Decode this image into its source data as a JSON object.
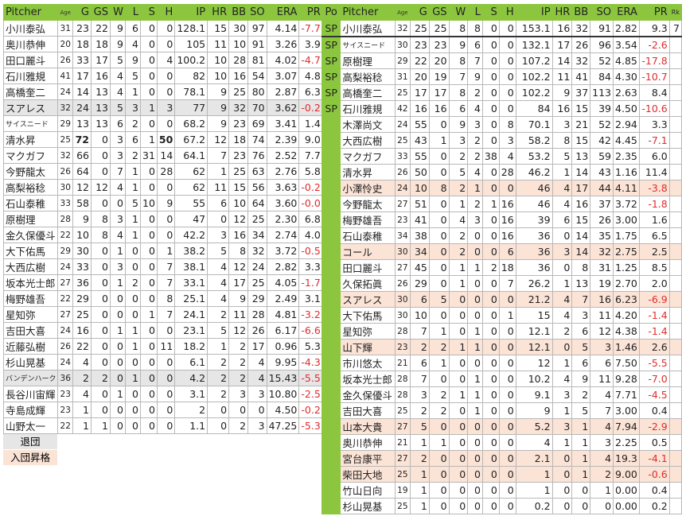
{
  "colors": {
    "header": "#8cc63f",
    "retired": "#e6e6e6",
    "joined": "#fbe3d6",
    "negative": "#e02c2c"
  },
  "left": {
    "headers": [
      "Pitcher",
      "Age",
      "G",
      "GS",
      "W",
      "L",
      "S",
      "H",
      "IP",
      "HR",
      "BB",
      "SO",
      "ERA",
      "PR",
      "Rk"
    ],
    "rows": [
      {
        "r": [
          "小川泰弘",
          "31",
          "23",
          "22",
          "9",
          "6",
          "0",
          "0",
          "128.1",
          "15",
          "30",
          "97",
          "4.14",
          "-7.7",
          ""
        ]
      },
      {
        "r": [
          "奥川恭伸",
          "20",
          "18",
          "18",
          "9",
          "4",
          "0",
          "0",
          "105",
          "11",
          "10",
          "91",
          "3.26",
          "3.9",
          ""
        ]
      },
      {
        "r": [
          "田口麗斗",
          "26",
          "33",
          "17",
          "5",
          "9",
          "0",
          "4",
          "100.2",
          "10",
          "28",
          "81",
          "4.02",
          "-4.7",
          ""
        ]
      },
      {
        "r": [
          "石川雅規",
          "41",
          "17",
          "16",
          "4",
          "5",
          "0",
          "0",
          "82",
          "10",
          "16",
          "54",
          "3.07",
          "4.8",
          ""
        ]
      },
      {
        "r": [
          "高橋奎二",
          "24",
          "14",
          "13",
          "4",
          "1",
          "0",
          "0",
          "78.1",
          "9",
          "25",
          "80",
          "2.87",
          "6.3",
          ""
        ]
      },
      {
        "r": [
          "スアレス",
          "32",
          "24",
          "13",
          "5",
          "3",
          "1",
          "3",
          "77",
          "9",
          "32",
          "70",
          "3.62",
          "-0.2",
          ""
        ],
        "hl": "gray"
      },
      {
        "r": [
          "サイスニード",
          "29",
          "13",
          "13",
          "6",
          "2",
          "0",
          "0",
          "68.2",
          "9",
          "23",
          "69",
          "3.41",
          "1.4",
          ""
        ]
      },
      {
        "r": [
          "清水昇",
          "25",
          "72",
          "0",
          "3",
          "6",
          "1",
          "50",
          "67.2",
          "12",
          "18",
          "74",
          "2.39",
          "9.0",
          ""
        ],
        "bold": [
          2,
          7
        ]
      },
      {
        "r": [
          "マクガフ",
          "32",
          "66",
          "0",
          "3",
          "2",
          "31",
          "14",
          "64.1",
          "7",
          "23",
          "76",
          "2.52",
          "7.7",
          ""
        ]
      },
      {
        "r": [
          "今野龍太",
          "26",
          "64",
          "0",
          "7",
          "1",
          "0",
          "28",
          "62",
          "1",
          "25",
          "63",
          "2.76",
          "5.8",
          ""
        ]
      },
      {
        "r": [
          "高梨裕稔",
          "30",
          "12",
          "12",
          "4",
          "1",
          "0",
          "0",
          "62",
          "11",
          "15",
          "56",
          "3.63",
          "-0.2",
          ""
        ]
      },
      {
        "r": [
          "石山泰稚",
          "33",
          "58",
          "0",
          "0",
          "5",
          "10",
          "9",
          "55",
          "6",
          "10",
          "64",
          "3.60",
          "-0.0",
          ""
        ]
      },
      {
        "r": [
          "原樹理",
          "28",
          "9",
          "8",
          "3",
          "1",
          "0",
          "0",
          "47",
          "0",
          "12",
          "25",
          "2.30",
          "6.8",
          ""
        ]
      },
      {
        "r": [
          "金久保優斗",
          "22",
          "10",
          "8",
          "4",
          "1",
          "0",
          "0",
          "42.2",
          "3",
          "16",
          "34",
          "2.74",
          "4.0",
          ""
        ]
      },
      {
        "r": [
          "大下佑馬",
          "29",
          "30",
          "0",
          "1",
          "0",
          "0",
          "1",
          "38.2",
          "5",
          "8",
          "32",
          "3.72",
          "-0.5",
          ""
        ]
      },
      {
        "r": [
          "大西広樹",
          "24",
          "33",
          "0",
          "3",
          "0",
          "0",
          "7",
          "38.1",
          "4",
          "12",
          "24",
          "2.82",
          "3.3",
          ""
        ]
      },
      {
        "r": [
          "坂本光士郎",
          "27",
          "36",
          "0",
          "1",
          "2",
          "0",
          "7",
          "33.1",
          "4",
          "17",
          "25",
          "4.05",
          "-1.7",
          ""
        ]
      },
      {
        "r": [
          "梅野雄吾",
          "22",
          "29",
          "0",
          "0",
          "0",
          "0",
          "8",
          "25.1",
          "4",
          "9",
          "29",
          "2.49",
          "3.1",
          ""
        ]
      },
      {
        "r": [
          "星知弥",
          "27",
          "25",
          "0",
          "0",
          "0",
          "1",
          "7",
          "24.1",
          "2",
          "11",
          "28",
          "4.81",
          "-3.2",
          ""
        ]
      },
      {
        "r": [
          "吉田大喜",
          "24",
          "16",
          "0",
          "1",
          "1",
          "0",
          "0",
          "23.1",
          "5",
          "12",
          "26",
          "6.17",
          "-6.6",
          ""
        ]
      },
      {
        "r": [
          "近藤弘樹",
          "26",
          "22",
          "0",
          "0",
          "1",
          "0",
          "11",
          "18.2",
          "1",
          "2",
          "17",
          "0.96",
          "5.3",
          ""
        ]
      },
      {
        "r": [
          "杉山晃基",
          "24",
          "4",
          "0",
          "0",
          "0",
          "0",
          "0",
          "6.1",
          "2",
          "2",
          "4",
          "9.95",
          "-4.3",
          ""
        ]
      },
      {
        "r": [
          "バンデンハーク",
          "36",
          "2",
          "2",
          "0",
          "1",
          "0",
          "0",
          "4.2",
          "2",
          "2",
          "4",
          "15.43",
          "-5.5",
          ""
        ],
        "hl": "gray"
      },
      {
        "r": [
          "長谷川宙輝",
          "23",
          "4",
          "0",
          "1",
          "0",
          "0",
          "0",
          "3.1",
          "2",
          "3",
          "3",
          "10.80",
          "-2.5",
          ""
        ]
      },
      {
        "r": [
          "寺島成輝",
          "23",
          "1",
          "0",
          "0",
          "0",
          "0",
          "0",
          "2",
          "0",
          "0",
          "0",
          "4.50",
          "-0.2",
          ""
        ]
      },
      {
        "r": [
          "山野太一",
          "22",
          "1",
          "1",
          "0",
          "0",
          "0",
          "0",
          "1.1",
          "0",
          "2",
          "3",
          "47.25",
          "-5.3",
          ""
        ]
      }
    ]
  },
  "legend": {
    "retired": "退団",
    "joined": "入団昇格"
  },
  "right": {
    "headers": [
      "Po",
      "Pitcher",
      "Age",
      "G",
      "GS",
      "W",
      "L",
      "S",
      "H",
      "IP",
      "HR",
      "BB",
      "SO",
      "ERA",
      "PR",
      "Rk"
    ],
    "rows": [
      {
        "r": [
          "SP",
          "小川泰弘",
          "32",
          "25",
          "25",
          "8",
          "8",
          "0",
          "0",
          "153.1",
          "16",
          "32",
          "91",
          "2.82",
          "9.3",
          "7"
        ]
      },
      {
        "r": [
          "SP",
          "サイスニード",
          "30",
          "23",
          "23",
          "9",
          "6",
          "0",
          "0",
          "132.1",
          "17",
          "26",
          "96",
          "3.54",
          "-2.6",
          ""
        ]
      },
      {
        "r": [
          "SP",
          "原樹理",
          "29",
          "22",
          "20",
          "8",
          "7",
          "0",
          "0",
          "107.2",
          "14",
          "32",
          "52",
          "4.85",
          "-17.8",
          ""
        ]
      },
      {
        "r": [
          "SP",
          "高梨裕稔",
          "31",
          "20",
          "19",
          "7",
          "9",
          "0",
          "0",
          "102.2",
          "11",
          "41",
          "84",
          "4.30",
          "-10.7",
          ""
        ]
      },
      {
        "r": [
          "SP",
          "高橋奎二",
          "25",
          "17",
          "17",
          "8",
          "2",
          "0",
          "0",
          "102.2",
          "9",
          "37",
          "113",
          "2.63",
          "8.4",
          ""
        ]
      },
      {
        "r": [
          "SP",
          "石川雅規",
          "42",
          "16",
          "16",
          "6",
          "4",
          "0",
          "0",
          "84",
          "16",
          "15",
          "39",
          "4.50",
          "-10.6",
          ""
        ]
      },
      {
        "r": [
          "",
          "木澤尚文",
          "24",
          "55",
          "0",
          "9",
          "3",
          "0",
          "8",
          "70.1",
          "3",
          "21",
          "52",
          "2.94",
          "3.3",
          ""
        ]
      },
      {
        "r": [
          "",
          "大西広樹",
          "25",
          "43",
          "1",
          "3",
          "2",
          "0",
          "3",
          "58.2",
          "8",
          "15",
          "42",
          "4.45",
          "-7.1",
          ""
        ]
      },
      {
        "r": [
          "",
          "マクガフ",
          "33",
          "55",
          "0",
          "2",
          "2",
          "38",
          "4",
          "53.2",
          "5",
          "13",
          "59",
          "2.35",
          "6.0",
          ""
        ]
      },
      {
        "r": [
          "",
          "清水昇",
          "26",
          "50",
          "0",
          "5",
          "4",
          "0",
          "28",
          "46.2",
          "1",
          "14",
          "43",
          "1.16",
          "11.4",
          ""
        ]
      },
      {
        "r": [
          "",
          "小澤怜史",
          "24",
          "10",
          "8",
          "2",
          "1",
          "0",
          "0",
          "46",
          "4",
          "17",
          "44",
          "4.11",
          "-3.8",
          ""
        ],
        "hl": "peach"
      },
      {
        "r": [
          "",
          "今野龍太",
          "27",
          "51",
          "0",
          "1",
          "2",
          "1",
          "16",
          "46",
          "4",
          "16",
          "37",
          "3.72",
          "-1.8",
          ""
        ]
      },
      {
        "r": [
          "",
          "梅野雄吾",
          "23",
          "41",
          "0",
          "4",
          "3",
          "0",
          "16",
          "39",
          "6",
          "15",
          "26",
          "3.00",
          "1.6",
          ""
        ]
      },
      {
        "r": [
          "",
          "石山泰稚",
          "34",
          "38",
          "0",
          "2",
          "0",
          "0",
          "16",
          "36",
          "0",
          "14",
          "35",
          "1.75",
          "6.5",
          ""
        ]
      },
      {
        "r": [
          "",
          "コール",
          "30",
          "34",
          "0",
          "2",
          "0",
          "0",
          "6",
          "36",
          "3",
          "14",
          "32",
          "2.75",
          "2.5",
          ""
        ],
        "hl": "peach"
      },
      {
        "r": [
          "",
          "田口麗斗",
          "27",
          "45",
          "0",
          "1",
          "1",
          "2",
          "18",
          "36",
          "0",
          "8",
          "31",
          "1.25",
          "8.5",
          ""
        ]
      },
      {
        "r": [
          "",
          "久保拓眞",
          "26",
          "29",
          "0",
          "1",
          "0",
          "0",
          "7",
          "26.2",
          "1",
          "13",
          "19",
          "2.70",
          "2.0",
          ""
        ]
      },
      {
        "r": [
          "",
          "スアレス",
          "30",
          "6",
          "5",
          "0",
          "0",
          "0",
          "0",
          "21.2",
          "4",
          "7",
          "16",
          "6.23",
          "-6.9",
          ""
        ],
        "hl": "peach"
      },
      {
        "r": [
          "",
          "大下佑馬",
          "30",
          "10",
          "0",
          "0",
          "0",
          "0",
          "1",
          "15",
          "4",
          "3",
          "11",
          "4.20",
          "-1.4",
          ""
        ]
      },
      {
        "r": [
          "",
          "星知弥",
          "28",
          "7",
          "1",
          "0",
          "1",
          "0",
          "0",
          "12.1",
          "2",
          "6",
          "12",
          "4.38",
          "-1.4",
          ""
        ]
      },
      {
        "r": [
          "",
          "山下輝",
          "23",
          "2",
          "2",
          "1",
          "1",
          "0",
          "0",
          "12.1",
          "0",
          "5",
          "3",
          "1.46",
          "2.6",
          ""
        ],
        "hl": "peach"
      },
      {
        "r": [
          "",
          "市川悠太",
          "21",
          "6",
          "1",
          "0",
          "0",
          "0",
          "0",
          "12",
          "1",
          "6",
          "6",
          "7.50",
          "-5.5",
          ""
        ]
      },
      {
        "r": [
          "",
          "坂本光士郎",
          "28",
          "7",
          "0",
          "0",
          "1",
          "0",
          "0",
          "10.2",
          "4",
          "9",
          "11",
          "9.28",
          "-7.0",
          ""
        ]
      },
      {
        "r": [
          "",
          "金久保優斗",
          "28",
          "3",
          "2",
          "1",
          "1",
          "0",
          "0",
          "9.1",
          "3",
          "2",
          "4",
          "7.71",
          "-4.5",
          ""
        ]
      },
      {
        "r": [
          "",
          "吉田大喜",
          "25",
          "2",
          "2",
          "0",
          "1",
          "0",
          "0",
          "9",
          "1",
          "5",
          "7",
          "3.00",
          "0.4",
          ""
        ]
      },
      {
        "r": [
          "",
          "山本大貴",
          "27",
          "5",
          "0",
          "0",
          "0",
          "0",
          "0",
          "5.2",
          "3",
          "1",
          "4",
          "7.94",
          "-2.9",
          ""
        ],
        "hl": "peach"
      },
      {
        "r": [
          "",
          "奥川恭伸",
          "21",
          "1",
          "1",
          "0",
          "0",
          "0",
          "0",
          "4",
          "1",
          "1",
          "3",
          "2.25",
          "0.5",
          ""
        ]
      },
      {
        "r": [
          "",
          "宮台康平",
          "27",
          "2",
          "0",
          "0",
          "0",
          "0",
          "0",
          "2.1",
          "0",
          "1",
          "4",
          "19.3",
          "-4.1",
          ""
        ],
        "hl": "peach"
      },
      {
        "r": [
          "",
          "柴田大地",
          "25",
          "1",
          "0",
          "0",
          "0",
          "0",
          "0",
          "1",
          "0",
          "1",
          "2",
          "9.00",
          "-0.6",
          ""
        ],
        "hl": "peach"
      },
      {
        "r": [
          "",
          "竹山日向",
          "19",
          "1",
          "0",
          "0",
          "0",
          "0",
          "0",
          "1",
          "0",
          "0",
          "1",
          "0.00",
          "0.4",
          ""
        ]
      },
      {
        "r": [
          "",
          "杉山晃基",
          "25",
          "1",
          "0",
          "0",
          "0",
          "0",
          "0",
          "0.2",
          "0",
          "0",
          "0",
          "0.00",
          "0.2",
          ""
        ]
      }
    ]
  }
}
